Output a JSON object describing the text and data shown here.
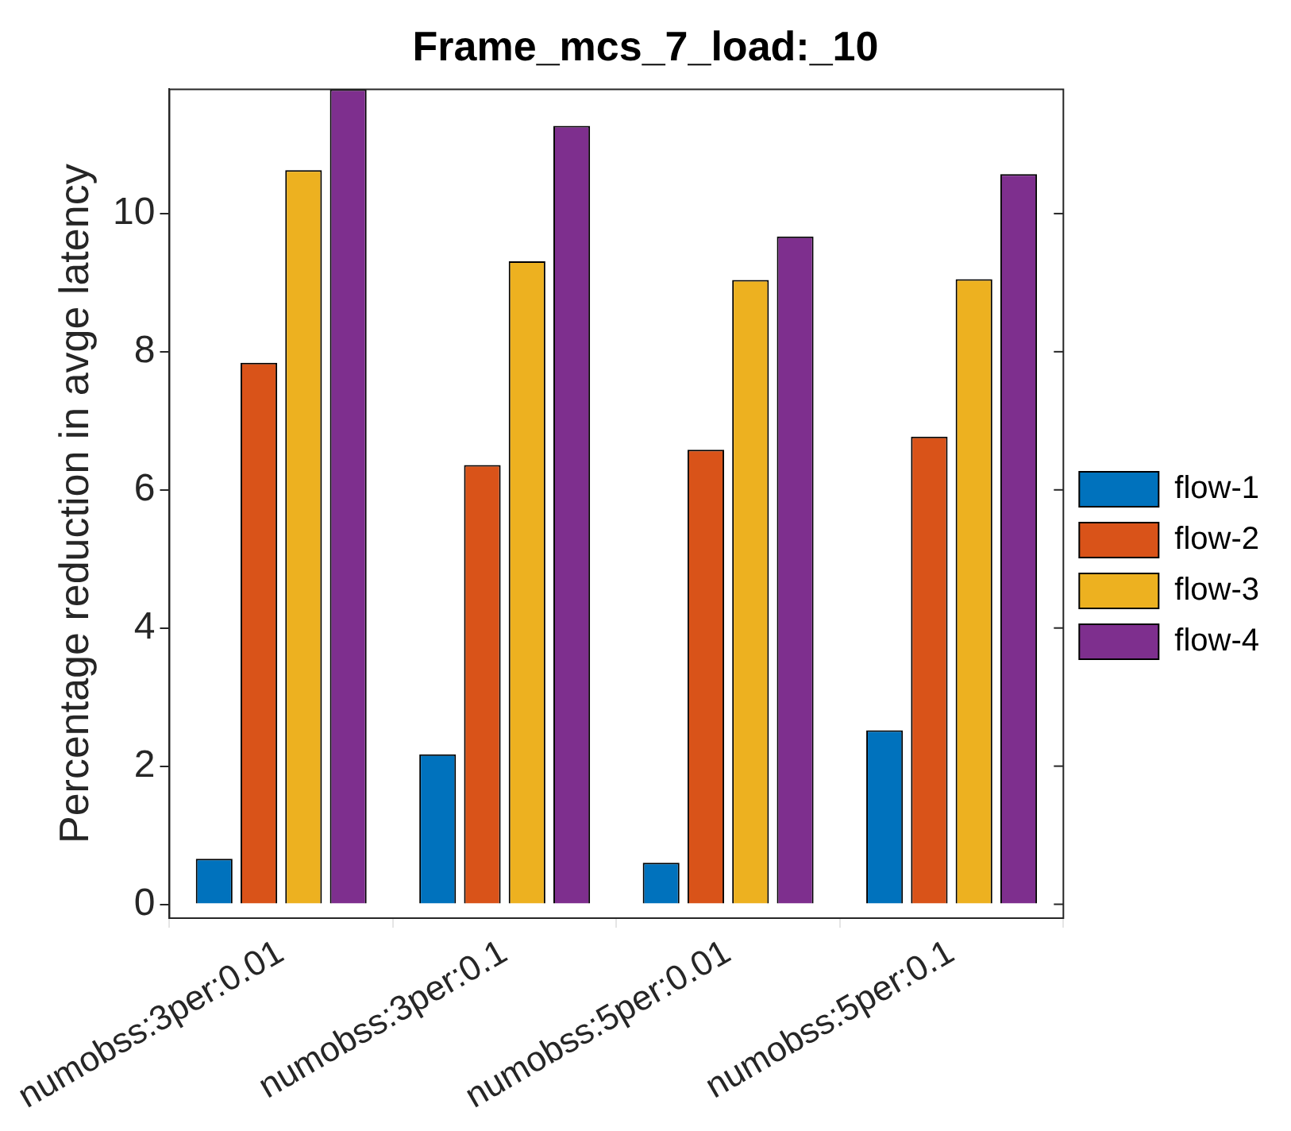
{
  "chart_data": {
    "type": "bar",
    "title": "Frame_mcs_7_load:_10",
    "ylabel": "Percentage reduction in avge latency",
    "categories": [
      "numobss:3per:0.01",
      "numobss:3per:0.1",
      "numobss:5per:0.01",
      "numobss:5per:0.1"
    ],
    "series": [
      {
        "name": "flow-1",
        "color": "#0072bd",
        "values": [
          0.66,
          2.17,
          0.6,
          2.52
        ]
      },
      {
        "name": "flow-2",
        "color": "#d95319",
        "values": [
          7.84,
          6.36,
          6.58,
          6.77
        ]
      },
      {
        "name": "flow-3",
        "color": "#edb120",
        "values": [
          10.63,
          9.31,
          9.04,
          9.05
        ]
      },
      {
        "name": "flow-4",
        "color": "#7e2f8e",
        "values": [
          11.8,
          11.27,
          9.67,
          10.57
        ]
      }
    ],
    "ylim": [
      -0.2,
      11.8
    ],
    "yticks": [
      0,
      2,
      4,
      6,
      8,
      10
    ],
    "grid": false,
    "legend": "right"
  }
}
